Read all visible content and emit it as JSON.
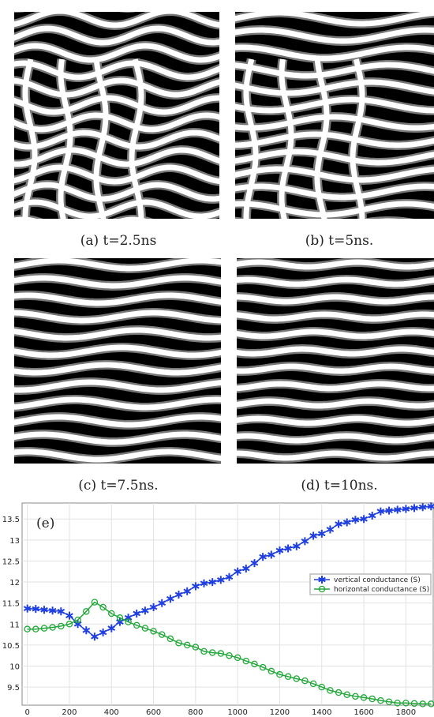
{
  "figures": [
    {
      "caption": "(a) t=2.5ns"
    },
    {
      "caption": "(b) t=5ns."
    },
    {
      "caption": "(c) t=7.5ns."
    },
    {
      "caption": "(d) t=10ns."
    }
  ],
  "chart_data": {
    "type": "line",
    "annotation": "(e)",
    "x": [
      0,
      40,
      80,
      120,
      160,
      200,
      240,
      280,
      320,
      360,
      400,
      440,
      480,
      520,
      560,
      600,
      640,
      680,
      720,
      760,
      800,
      840,
      880,
      920,
      960,
      1000,
      1040,
      1080,
      1120,
      1160,
      1200,
      1240,
      1280,
      1320,
      1360,
      1400,
      1440,
      1480,
      1520,
      1560,
      1600,
      1640,
      1680,
      1720,
      1760,
      1800,
      1840,
      1880,
      1920
    ],
    "series": [
      {
        "name": "vertical conductance (S)",
        "color": "#1f3fe0",
        "marker": "star",
        "values": [
          11.37,
          11.36,
          11.34,
          11.32,
          11.3,
          11.2,
          11.0,
          10.85,
          10.7,
          10.8,
          10.9,
          11.05,
          11.15,
          11.25,
          11.32,
          11.4,
          11.5,
          11.6,
          11.7,
          11.78,
          11.9,
          11.97,
          12.0,
          12.05,
          12.12,
          12.25,
          12.32,
          12.45,
          12.6,
          12.65,
          12.75,
          12.8,
          12.85,
          12.97,
          13.1,
          13.15,
          13.25,
          13.38,
          13.42,
          13.48,
          13.5,
          13.58,
          13.68,
          13.7,
          13.72,
          13.74,
          13.76,
          13.78,
          13.8
        ]
      },
      {
        "name": "horizontal conductance (S)",
        "color": "#22a83a",
        "marker": "circle",
        "values": [
          10.88,
          10.88,
          10.9,
          10.92,
          10.95,
          11.0,
          11.1,
          11.3,
          11.52,
          11.4,
          11.25,
          11.15,
          11.05,
          10.97,
          10.9,
          10.83,
          10.75,
          10.65,
          10.55,
          10.5,
          10.45,
          10.35,
          10.32,
          10.3,
          10.25,
          10.2,
          10.12,
          10.05,
          9.97,
          9.88,
          9.8,
          9.75,
          9.7,
          9.65,
          9.58,
          9.5,
          9.42,
          9.37,
          9.32,
          9.28,
          9.25,
          9.22,
          9.18,
          9.15,
          9.12,
          9.12,
          9.11,
          9.1,
          9.1
        ]
      }
    ],
    "xlim": [
      -25,
      1930
    ],
    "ylim": [
      9.07,
      13.88
    ],
    "xticks": [
      0,
      200,
      400,
      600,
      800,
      1000,
      1200,
      1400,
      1600,
      1800
    ],
    "yticks": [
      9.5,
      10,
      10.5,
      11,
      11.5,
      12,
      12.5,
      13,
      13.5
    ],
    "grid": true,
    "legend": "right"
  }
}
